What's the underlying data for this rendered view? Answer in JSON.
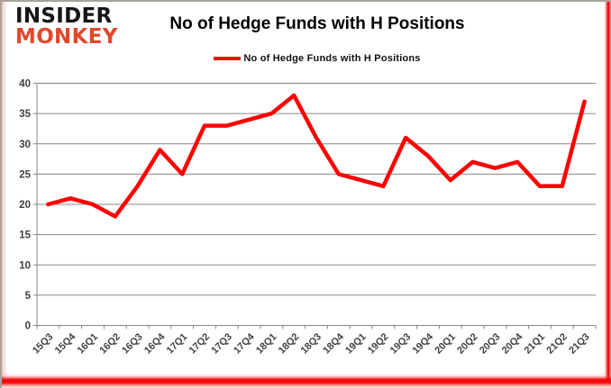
{
  "logo": {
    "line1": "INSIDER",
    "line2": "MONKEY"
  },
  "title": "No of Hedge Funds with H Positions",
  "legend": {
    "label": "No of Hedge Funds with H Positions",
    "color": "#fe0000"
  },
  "chart_data": {
    "type": "line",
    "title": "No of Hedge Funds with H Positions",
    "categories": [
      "15Q3",
      "15Q4",
      "16Q1",
      "16Q2",
      "16Q3",
      "16Q4",
      "17Q1",
      "17Q2",
      "17Q3",
      "17Q4",
      "18Q1",
      "18Q2",
      "18Q3",
      "18Q4",
      "19Q1",
      "19Q2",
      "19Q3",
      "19Q4",
      "20Q1",
      "20Q2",
      "20Q3",
      "20Q4",
      "21Q1",
      "21Q2",
      "21Q3"
    ],
    "series": [
      {
        "name": "No of Hedge Funds with H Positions",
        "values": [
          20,
          21,
          20,
          18,
          23,
          29,
          25,
          33,
          33,
          34,
          35,
          38,
          31,
          25,
          24,
          23,
          31,
          28,
          24,
          27,
          26,
          27,
          23,
          23,
          37
        ]
      }
    ],
    "xlabel": "",
    "ylabel": "",
    "ylim": [
      0,
      40
    ],
    "ytick_step": 5,
    "grid": true,
    "legend_position": "top",
    "line_color": "#fe0000",
    "gridline_color": "#878787",
    "axis_text_color": "#3f3f3f"
  }
}
